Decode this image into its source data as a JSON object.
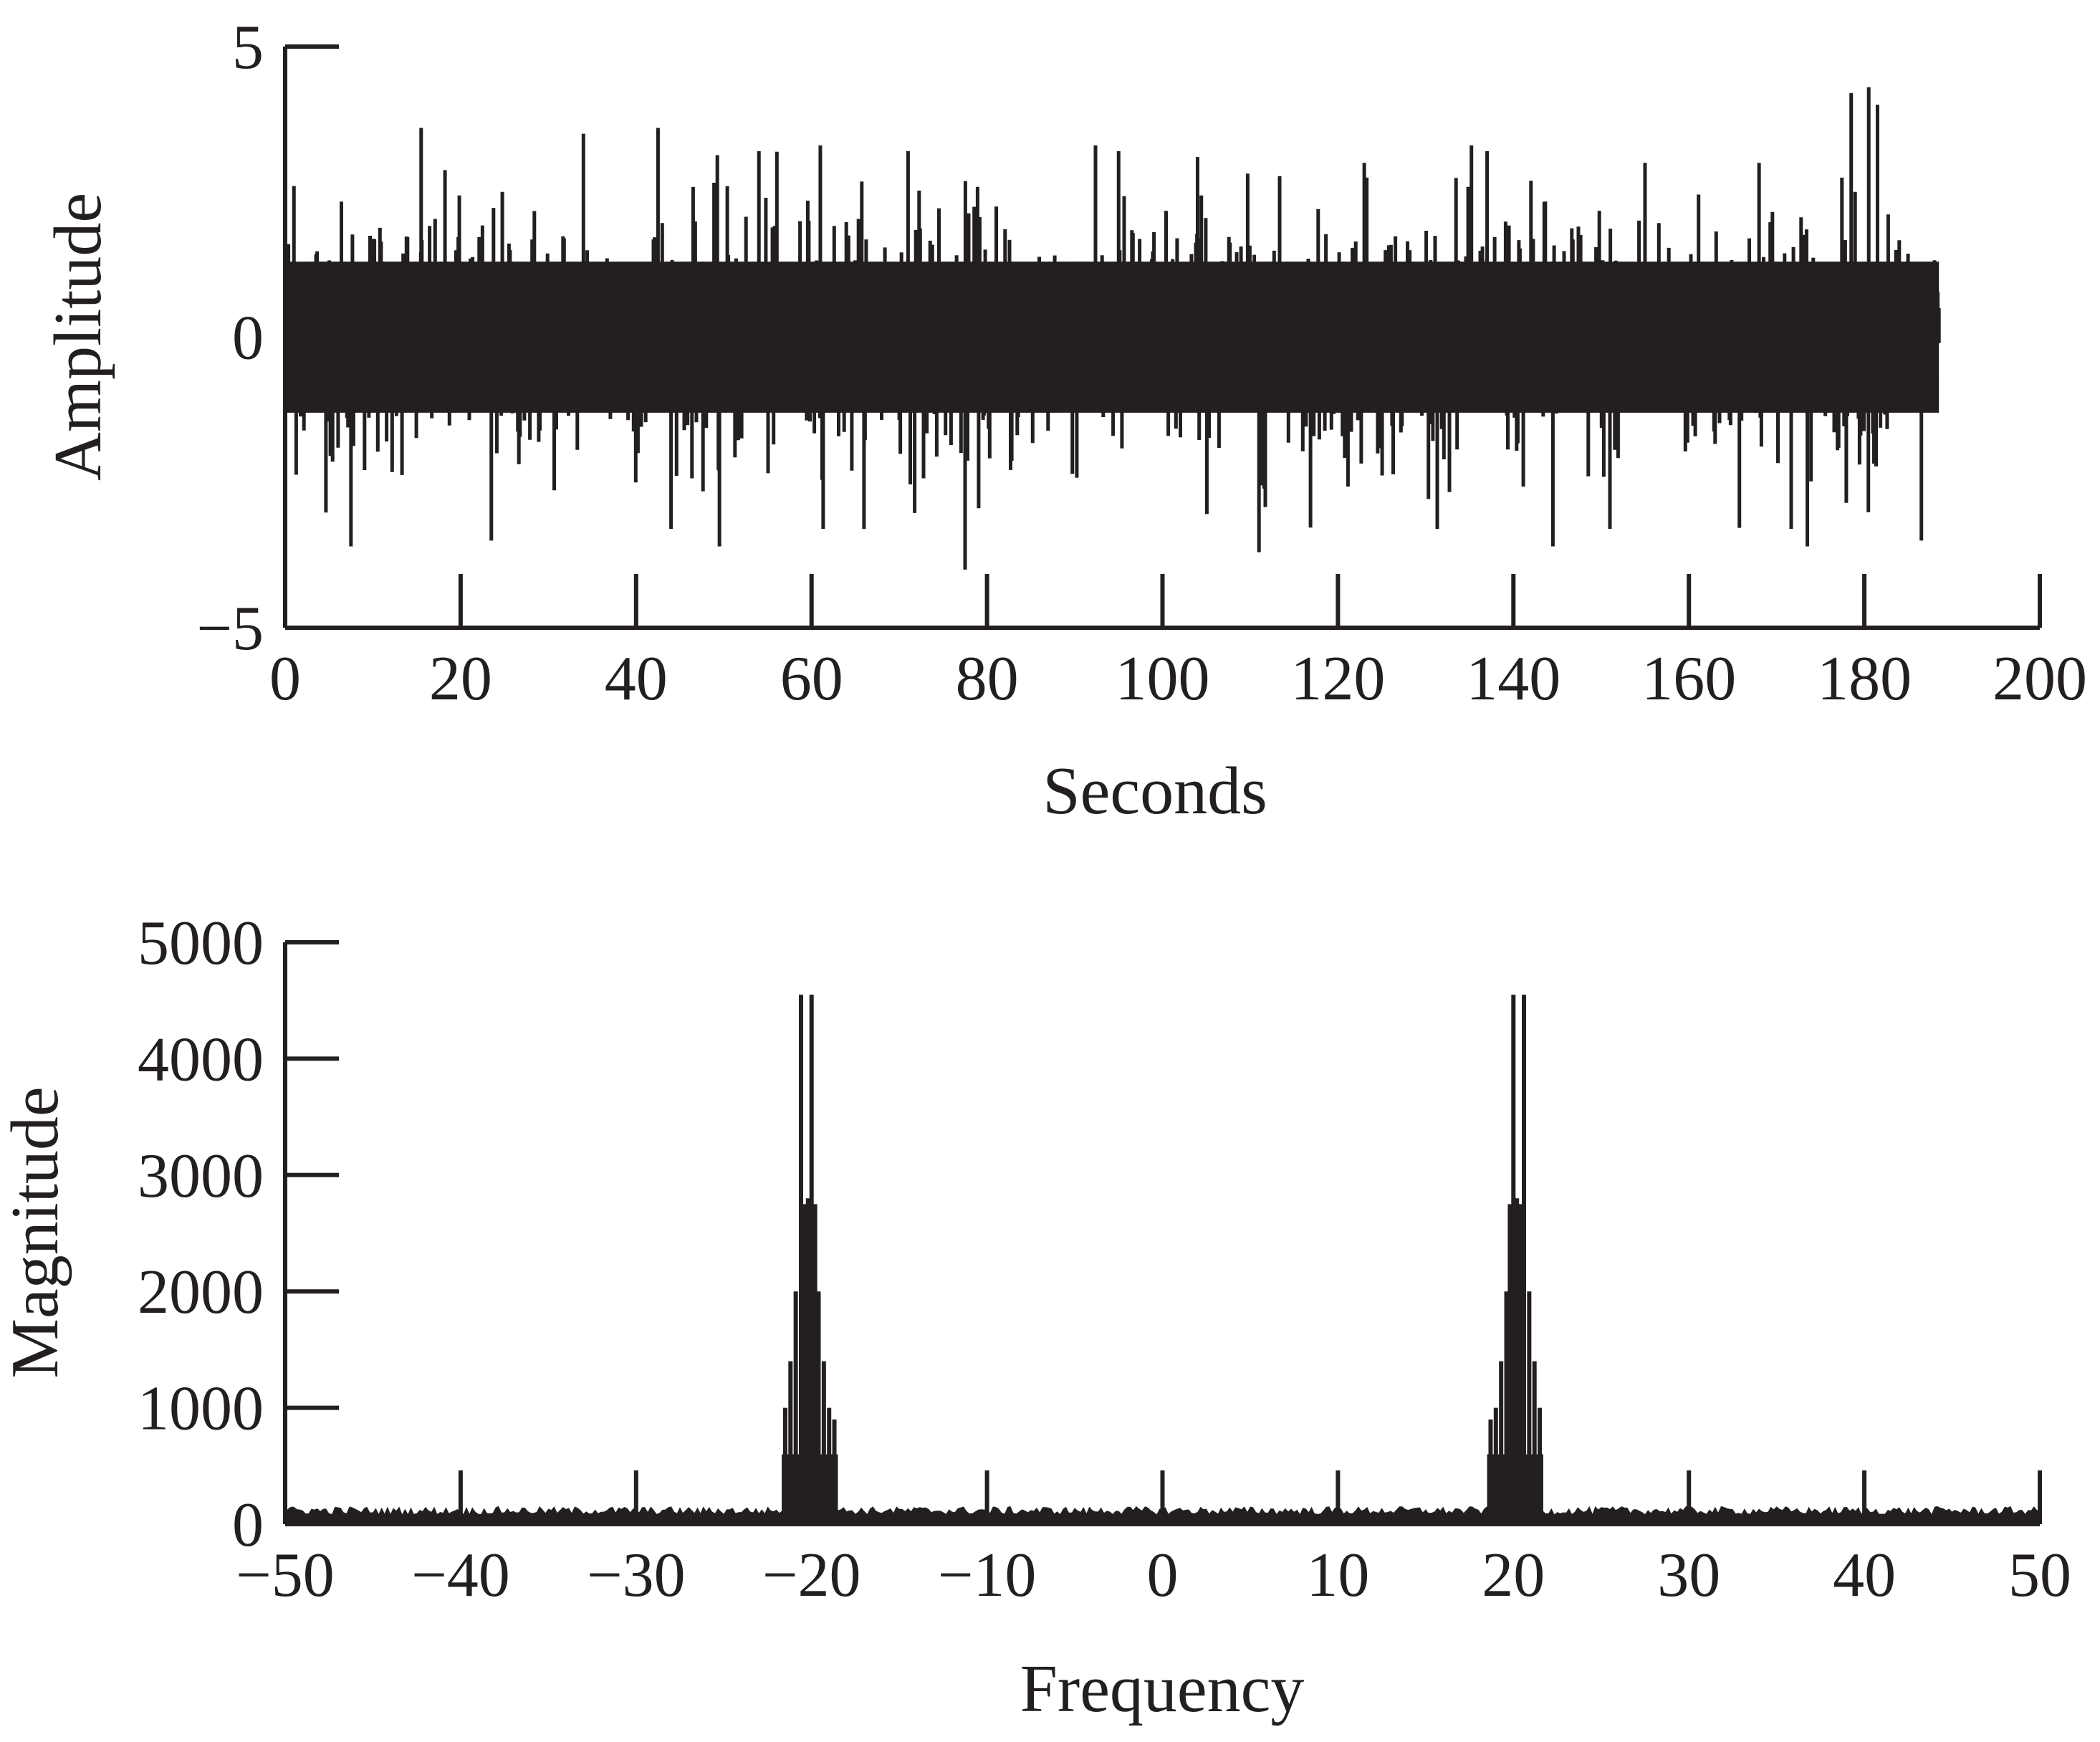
{
  "chart_data": [
    {
      "type": "line",
      "xlabel": "Seconds",
      "ylabel": "Amplitude",
      "xlim": [
        0,
        200
      ],
      "ylim": [
        -5,
        5
      ],
      "x_ticks": [
        0,
        20,
        40,
        60,
        80,
        100,
        120,
        140,
        160,
        180,
        200
      ],
      "y_ticks": [
        -5,
        0,
        5
      ],
      "x_tick_labels": [
        "0",
        "20",
        "40",
        "60",
        "80",
        "100",
        "120",
        "140",
        "160",
        "180",
        "200"
      ],
      "y_tick_labels": [
        "−5",
        "0",
        "5"
      ],
      "signal_range": [
        0,
        188.5
      ],
      "series": [
        {
          "description_values": "approximate peak excursions of the noisy signal",
          "x": [
            1,
            7.5,
            15.5,
            23.5,
            34,
            42.5,
            49.5,
            54,
            61,
            71,
            77.5,
            95,
            104,
            111,
            123,
            137,
            144.5,
            151,
            155,
            168,
            173.5,
            178.5,
            180.5,
            181.5,
            186.5,
            188.5
          ],
          "y": [
            2.6,
            -3.6,
            3.6,
            -3.5,
            3.5,
            3.6,
            -3.6,
            3.2,
            3.3,
            3.2,
            -4.0,
            3.2,
            3.1,
            -3.7,
            3.0,
            3.2,
            -3.6,
            -3.3,
            3.0,
            3.0,
            -3.6,
            4.2,
            4.3,
            4.0,
            -3.5,
            0.5
          ]
        }
      ]
    },
    {
      "type": "line",
      "xlabel": "Frequency",
      "ylabel": "Magnitude",
      "xlim": [
        -50,
        50
      ],
      "ylim": [
        0,
        5000
      ],
      "x_ticks": [
        -50,
        -40,
        -30,
        -20,
        -10,
        0,
        10,
        20,
        30,
        40,
        50
      ],
      "y_ticks": [
        0,
        1000,
        2000,
        3000,
        4000,
        5000
      ],
      "x_tick_labels": [
        "−50",
        "−40",
        "−30",
        "−20",
        "−10",
        "0",
        "10",
        "20",
        "30",
        "40",
        "50"
      ],
      "y_tick_labels": [
        "0",
        "1000",
        "2000",
        "3000",
        "4000",
        "5000"
      ],
      "noise_floor": 120,
      "series": [
        {
          "description_values": "spectral peaks (symmetric about 0)",
          "x": [
            -21.5,
            -21.2,
            -20.9,
            -20.6,
            -20.4,
            -20.2,
            -20.0,
            -19.8,
            -19.6,
            -19.3,
            -19.0,
            -18.7,
            18.7,
            19.0,
            19.3,
            19.6,
            19.8,
            20.0,
            20.2,
            20.4,
            20.6,
            20.9,
            21.2,
            21.5
          ],
          "y": [
            1000,
            1400,
            2000,
            4550,
            2750,
            2800,
            4550,
            2750,
            2000,
            1400,
            1000,
            900,
            900,
            1000,
            1400,
            2000,
            2750,
            4550,
            2800,
            2750,
            4550,
            2000,
            1400,
            1000
          ]
        }
      ]
    }
  ]
}
